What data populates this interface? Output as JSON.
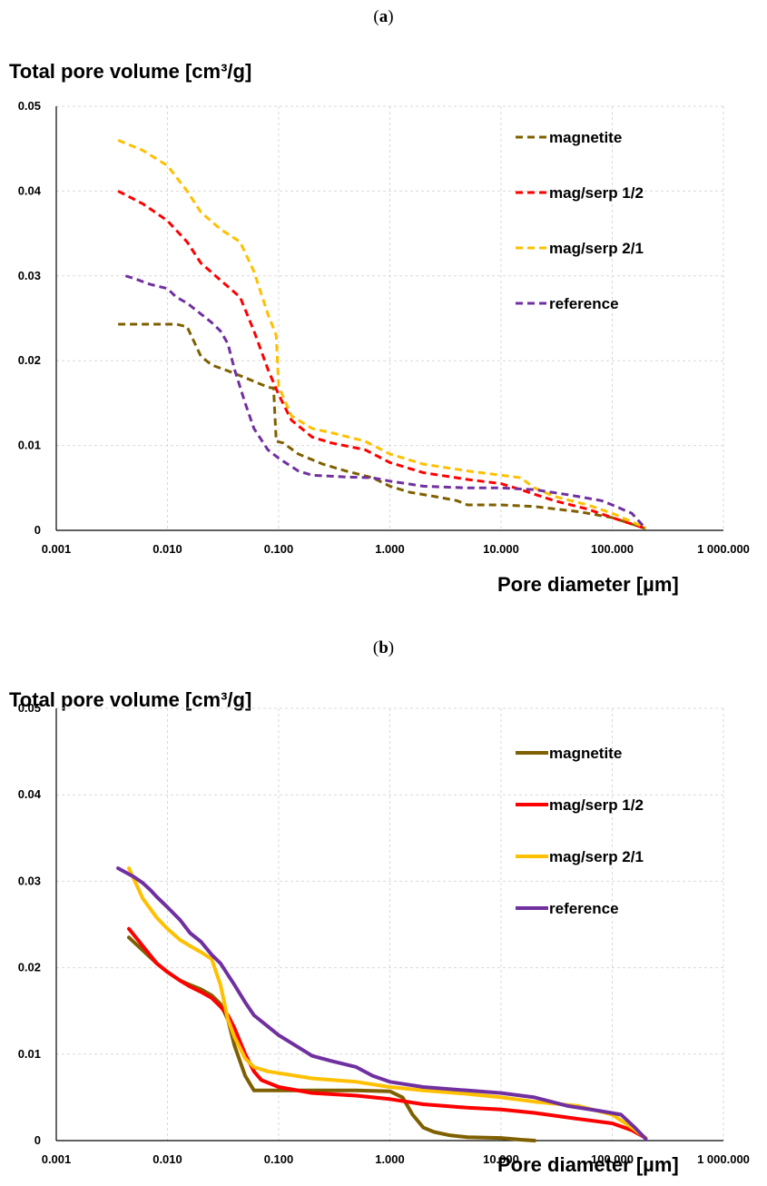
{
  "colors": {
    "magnetite": "#7F6000",
    "mag_serp_1_2": "#FF0000",
    "mag_serp_2_1": "#FFC000",
    "reference": "#7030A0",
    "grid": "#D9D9D9",
    "axis": "#000000"
  },
  "panels": [
    {
      "label_open": "(",
      "label_letter": "a",
      "label_close": ")"
    },
    {
      "label_open": "(",
      "label_letter": "b",
      "label_close": ")"
    }
  ],
  "chart_data": [
    {
      "type": "line",
      "line_style": "dashed",
      "ylabel": "Total pore volume [cm³/g]",
      "xlabel": "Pore diameter [µm]",
      "x_scale": "log",
      "xlim": [
        0.001,
        1000
      ],
      "ylim": [
        0,
        0.05
      ],
      "x_ticks": [
        0.001,
        0.01,
        0.1,
        1,
        10,
        100,
        1000
      ],
      "x_tick_labels": [
        "0.001",
        "0.010",
        "0.100",
        "1.000",
        "10.000",
        "100.000",
        "1 000.000"
      ],
      "y_ticks": [
        0,
        0.01,
        0.02,
        0.03,
        0.04,
        0.05
      ],
      "y_tick_labels": [
        "0",
        "0.01",
        "0.02",
        "0.03",
        "0.04",
        "0.05"
      ],
      "grid": true,
      "legend_position": "top-right",
      "series": [
        {
          "name": "magnetite",
          "color_key": "magnetite",
          "x": [
            0.0036,
            0.005,
            0.008,
            0.012,
            0.015,
            0.017,
            0.02,
            0.025,
            0.035,
            0.05,
            0.07,
            0.085,
            0.09,
            0.095,
            0.11,
            0.15,
            0.25,
            0.4,
            0.7,
            1.0,
            1.5,
            2.5,
            4.0,
            5.0,
            10.0,
            20.0,
            50.0,
            100.0,
            200.0
          ],
          "y": [
            0.0243,
            0.0243,
            0.0243,
            0.0243,
            0.024,
            0.0225,
            0.0205,
            0.0195,
            0.0188,
            0.018,
            0.0172,
            0.0168,
            0.0168,
            0.0105,
            0.0103,
            0.009,
            0.0078,
            0.007,
            0.0062,
            0.0052,
            0.0045,
            0.004,
            0.0035,
            0.003,
            0.003,
            0.0028,
            0.0022,
            0.0015,
            0.0002
          ]
        },
        {
          "name": "mag/serp 1/2",
          "color_key": "mag_serp_1_2",
          "x": [
            0.0036,
            0.006,
            0.01,
            0.015,
            0.02,
            0.03,
            0.045,
            0.06,
            0.08,
            0.1,
            0.13,
            0.2,
            0.3,
            0.6,
            1.0,
            2.0,
            5.0,
            10.0,
            15.0,
            30.0,
            60.0,
            100.0,
            200.0
          ],
          "y": [
            0.04,
            0.0385,
            0.0365,
            0.034,
            0.0315,
            0.0295,
            0.0275,
            0.0235,
            0.019,
            0.016,
            0.013,
            0.011,
            0.0103,
            0.0095,
            0.008,
            0.0068,
            0.006,
            0.0055,
            0.0048,
            0.0035,
            0.0025,
            0.0015,
            0.0002
          ]
        },
        {
          "name": "mag/serp 2/1",
          "color_key": "mag_serp_2_1",
          "x": [
            0.0036,
            0.006,
            0.01,
            0.015,
            0.02,
            0.03,
            0.045,
            0.06,
            0.08,
            0.095,
            0.1,
            0.13,
            0.2,
            0.3,
            0.6,
            1.0,
            2.0,
            5.0,
            10.0,
            15.0,
            20.0,
            30.0,
            60.0,
            100.0,
            200.0
          ],
          "y": [
            0.046,
            0.0448,
            0.043,
            0.04,
            0.0375,
            0.0355,
            0.034,
            0.0305,
            0.0255,
            0.023,
            0.017,
            0.0135,
            0.012,
            0.0115,
            0.0105,
            0.009,
            0.0078,
            0.007,
            0.0065,
            0.0062,
            0.005,
            0.004,
            0.003,
            0.002,
            0.0003
          ]
        },
        {
          "name": "reference",
          "color_key": "reference",
          "x": [
            0.0042,
            0.005,
            0.007,
            0.01,
            0.012,
            0.015,
            0.02,
            0.025,
            0.03,
            0.035,
            0.04,
            0.05,
            0.06,
            0.08,
            0.1,
            0.15,
            0.2,
            0.4,
            0.7,
            1.0,
            2.0,
            5.0,
            10.0,
            20.0,
            40.0,
            80.0,
            100.0,
            150.0,
            200.0
          ],
          "y": [
            0.03,
            0.0297,
            0.029,
            0.0285,
            0.0275,
            0.0268,
            0.0255,
            0.0245,
            0.0235,
            0.022,
            0.019,
            0.015,
            0.012,
            0.0095,
            0.0085,
            0.007,
            0.0065,
            0.0063,
            0.0062,
            0.0058,
            0.0052,
            0.005,
            0.005,
            0.0048,
            0.0042,
            0.0035,
            0.003,
            0.002,
            0.0002
          ]
        }
      ]
    },
    {
      "type": "line",
      "line_style": "solid",
      "ylabel": "Total pore volume [cm³/g]",
      "xlabel": "Pore diameter [µm]",
      "x_scale": "log",
      "xlim": [
        0.001,
        1000
      ],
      "ylim": [
        0,
        0.05
      ],
      "x_ticks": [
        0.001,
        0.01,
        0.1,
        1,
        10,
        100,
        1000
      ],
      "x_tick_labels": [
        "0.001",
        "0.010",
        "0.100",
        "1.000",
        "10.000",
        "100.000",
        "1 000.000"
      ],
      "y_ticks": [
        0,
        0.01,
        0.02,
        0.03,
        0.04,
        0.05
      ],
      "y_tick_labels": [
        "0",
        "0.01",
        "0.02",
        "0.03",
        "0.04",
        "0.05"
      ],
      "grid": true,
      "legend_position": "top-right",
      "series": [
        {
          "name": "magnetite",
          "color_key": "magnetite",
          "x": [
            0.0045,
            0.006,
            0.008,
            0.01,
            0.013,
            0.016,
            0.02,
            0.025,
            0.03,
            0.035,
            0.04,
            0.05,
            0.06,
            0.07,
            0.1,
            0.2,
            0.5,
            1.0,
            1.3,
            1.6,
            2.0,
            2.5,
            3.5,
            5.0,
            10.0,
            15.0,
            20.0
          ],
          "y": [
            0.0235,
            0.022,
            0.0205,
            0.0195,
            0.0185,
            0.018,
            0.0175,
            0.0168,
            0.0158,
            0.014,
            0.011,
            0.0075,
            0.0058,
            0.0058,
            0.0058,
            0.0058,
            0.0058,
            0.0057,
            0.005,
            0.003,
            0.0015,
            0.001,
            0.0006,
            0.0004,
            0.0003,
            0.0001,
            0.0
          ]
        },
        {
          "name": "mag/serp 1/2",
          "color_key": "mag_serp_1_2",
          "x": [
            0.0045,
            0.006,
            0.008,
            0.01,
            0.013,
            0.016,
            0.02,
            0.025,
            0.03,
            0.035,
            0.04,
            0.05,
            0.06,
            0.07,
            0.1,
            0.2,
            0.5,
            1.0,
            2.0,
            5.0,
            10.0,
            20.0,
            50.0,
            100.0,
            150.0,
            200.0
          ],
          "y": [
            0.0245,
            0.0225,
            0.0205,
            0.0195,
            0.0185,
            0.0178,
            0.0172,
            0.0165,
            0.0155,
            0.0145,
            0.013,
            0.01,
            0.008,
            0.007,
            0.0062,
            0.0055,
            0.0052,
            0.0048,
            0.0042,
            0.0038,
            0.0036,
            0.0032,
            0.0025,
            0.002,
            0.0012,
            0.0003
          ]
        },
        {
          "name": "mag/serp 2/1",
          "color_key": "mag_serp_2_1",
          "x": [
            0.0045,
            0.006,
            0.008,
            0.01,
            0.013,
            0.016,
            0.02,
            0.025,
            0.03,
            0.035,
            0.04,
            0.05,
            0.06,
            0.08,
            0.1,
            0.2,
            0.5,
            1.0,
            2.0,
            5.0,
            10.0,
            20.0,
            50.0,
            100.0,
            150.0,
            200.0
          ],
          "y": [
            0.0315,
            0.028,
            0.0258,
            0.0245,
            0.0232,
            0.0225,
            0.0218,
            0.021,
            0.018,
            0.014,
            0.012,
            0.0095,
            0.0085,
            0.008,
            0.0078,
            0.0072,
            0.0068,
            0.0062,
            0.0058,
            0.0054,
            0.005,
            0.0045,
            0.004,
            0.003,
            0.0015,
            0.0003
          ]
        },
        {
          "name": "reference",
          "color_key": "reference",
          "x": [
            0.0036,
            0.005,
            0.006,
            0.007,
            0.008,
            0.01,
            0.013,
            0.016,
            0.02,
            0.025,
            0.03,
            0.04,
            0.05,
            0.06,
            0.08,
            0.1,
            0.15,
            0.2,
            0.3,
            0.5,
            0.7,
            1.0,
            2.0,
            5.0,
            10.0,
            20.0,
            40.0,
            80.0,
            120.0,
            160.0,
            200.0
          ],
          "y": [
            0.0315,
            0.0305,
            0.0298,
            0.029,
            0.0282,
            0.027,
            0.0255,
            0.024,
            0.023,
            0.0215,
            0.0205,
            0.018,
            0.016,
            0.0145,
            0.0132,
            0.0122,
            0.0108,
            0.0098,
            0.0092,
            0.0085,
            0.0075,
            0.0068,
            0.0062,
            0.0058,
            0.0055,
            0.005,
            0.004,
            0.0034,
            0.003,
            0.0015,
            0.0002
          ]
        }
      ]
    }
  ]
}
